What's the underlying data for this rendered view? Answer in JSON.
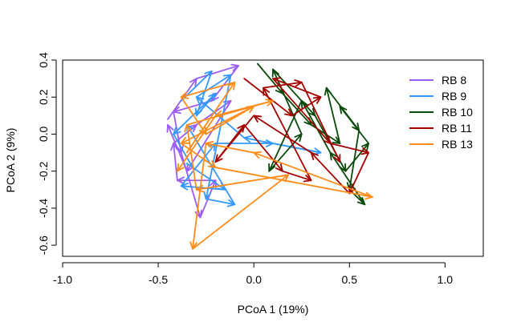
{
  "chart_data": {
    "type": "scatter",
    "subtype": "arrows",
    "title": "",
    "xlabel": "PCoA 1 (19%)",
    "ylabel": "PCoA 2 (9%)",
    "xlim": [
      -1.0,
      1.2
    ],
    "ylim": [
      -0.66,
      0.4
    ],
    "x_ticks": [
      -1.0,
      -0.5,
      0.0,
      0.5,
      1.0
    ],
    "x_tick_labels": [
      "-1.0",
      "-0.5",
      "0.0",
      "0.5",
      "1.0"
    ],
    "y_ticks": [
      -0.6,
      -0.4,
      -0.2,
      0.0,
      0.2,
      0.4
    ],
    "y_tick_labels": [
      "-0.6",
      "-0.4",
      "-0.2",
      "0.0",
      "0.2",
      "0.4"
    ],
    "grid": false,
    "legend_position": "top-right",
    "series": [
      {
        "name": "RB 8",
        "color": "#9B5DF5",
        "arrows": [
          [
            [
              -0.45,
              0.08
            ],
            [
              -0.3,
              0.3
            ]
          ],
          [
            [
              -0.3,
              0.3
            ],
            [
              -0.08,
              0.37
            ]
          ],
          [
            [
              -0.08,
              0.37
            ],
            [
              -0.22,
              0.18
            ]
          ],
          [
            [
              -0.22,
              0.18
            ],
            [
              -0.42,
              0.12
            ]
          ],
          [
            [
              -0.42,
              0.12
            ],
            [
              -0.38,
              -0.1
            ]
          ],
          [
            [
              -0.38,
              -0.1
            ],
            [
              -0.28,
              -0.45
            ]
          ],
          [
            [
              -0.28,
              -0.45
            ],
            [
              -0.2,
              -0.25
            ]
          ],
          [
            [
              -0.2,
              -0.25
            ],
            [
              -0.4,
              -0.25
            ]
          ],
          [
            [
              -0.4,
              -0.25
            ],
            [
              -0.42,
              -0.05
            ]
          ],
          [
            [
              -0.42,
              -0.05
            ],
            [
              -0.3,
              0.05
            ]
          ],
          [
            [
              -0.3,
              0.05
            ],
            [
              -0.12,
              0.18
            ]
          ],
          [
            [
              -0.12,
              0.18
            ],
            [
              -0.35,
              -0.2
            ]
          ],
          [
            [
              -0.35,
              -0.2
            ],
            [
              -0.45,
              0.05
            ]
          ]
        ]
      },
      {
        "name": "RB 9",
        "color": "#3399FF",
        "arrows": [
          [
            [
              -0.38,
              0.18
            ],
            [
              -0.22,
              0.34
            ]
          ],
          [
            [
              -0.22,
              0.34
            ],
            [
              -0.3,
              0.1
            ]
          ],
          [
            [
              -0.3,
              0.1
            ],
            [
              -0.2,
              0.22
            ]
          ],
          [
            [
              -0.2,
              0.22
            ],
            [
              -0.42,
              0.0
            ]
          ],
          [
            [
              -0.42,
              0.0
            ],
            [
              -0.32,
              -0.18
            ]
          ],
          [
            [
              -0.32,
              -0.18
            ],
            [
              -0.15,
              -0.3
            ]
          ],
          [
            [
              -0.15,
              -0.3
            ],
            [
              -0.38,
              -0.28
            ]
          ],
          [
            [
              -0.38,
              -0.28
            ],
            [
              -0.2,
              -0.05
            ]
          ],
          [
            [
              -0.2,
              -0.05
            ],
            [
              0.1,
              -0.05
            ]
          ],
          [
            [
              0.1,
              -0.05
            ],
            [
              0.35,
              -0.1
            ]
          ],
          [
            [
              0.35,
              -0.1
            ],
            [
              -0.05,
              -0.02
            ]
          ],
          [
            [
              -0.05,
              -0.02
            ],
            [
              -0.3,
              0.2
            ]
          ],
          [
            [
              -0.3,
              0.2
            ],
            [
              -0.12,
              0.32
            ]
          ],
          [
            [
              -0.12,
              0.32
            ],
            [
              -0.25,
              -0.35
            ]
          ],
          [
            [
              -0.25,
              -0.35
            ],
            [
              -0.1,
              -0.38
            ]
          ],
          [
            [
              -0.1,
              -0.38
            ],
            [
              -0.35,
              0.05
            ]
          ]
        ]
      },
      {
        "name": "RB 10",
        "color": "#0A4A0A",
        "arrows": [
          [
            [
              0.02,
              0.38
            ],
            [
              0.15,
              0.22
            ]
          ],
          [
            [
              0.15,
              0.22
            ],
            [
              0.3,
              0.05
            ]
          ],
          [
            [
              0.3,
              0.05
            ],
            [
              0.45,
              -0.05
            ]
          ],
          [
            [
              0.45,
              -0.05
            ],
            [
              0.38,
              0.25
            ]
          ],
          [
            [
              0.38,
              0.25
            ],
            [
              0.55,
              0.02
            ]
          ],
          [
            [
              0.55,
              0.02
            ],
            [
              0.5,
              -0.3
            ]
          ],
          [
            [
              0.5,
              -0.3
            ],
            [
              0.58,
              -0.38
            ]
          ],
          [
            [
              0.58,
              -0.38
            ],
            [
              0.4,
              -0.1
            ]
          ],
          [
            [
              0.4,
              -0.1
            ],
            [
              0.25,
              0.18
            ]
          ],
          [
            [
              0.25,
              0.18
            ],
            [
              0.08,
              -0.2
            ]
          ],
          [
            [
              0.08,
              -0.2
            ],
            [
              0.25,
              0.0
            ]
          ],
          [
            [
              0.25,
              0.0
            ],
            [
              0.1,
              0.35
            ]
          ],
          [
            [
              0.1,
              0.35
            ],
            [
              0.32,
              0.1
            ]
          ],
          [
            [
              0.32,
              0.1
            ],
            [
              0.48,
              -0.2
            ]
          ],
          [
            [
              0.48,
              -0.2
            ],
            [
              0.6,
              -0.05
            ]
          ],
          [
            [
              0.6,
              -0.05
            ],
            [
              0.45,
              0.15
            ]
          ]
        ]
      },
      {
        "name": "RB 11",
        "color": "#A30000",
        "arrows": [
          [
            [
              -0.05,
              0.3
            ],
            [
              0.2,
              0.1
            ]
          ],
          [
            [
              0.2,
              0.1
            ],
            [
              0.35,
              0.2
            ]
          ],
          [
            [
              0.35,
              0.2
            ],
            [
              0.1,
              0.3
            ]
          ],
          [
            [
              0.1,
              0.3
            ],
            [
              0.4,
              -0.05
            ]
          ],
          [
            [
              0.4,
              -0.05
            ],
            [
              0.6,
              -0.1
            ]
          ],
          [
            [
              0.6,
              -0.1
            ],
            [
              0.5,
              -0.32
            ]
          ],
          [
            [
              0.5,
              -0.32
            ],
            [
              0.3,
              -0.1
            ]
          ],
          [
            [
              0.3,
              -0.1
            ],
            [
              0.0,
              0.1
            ]
          ],
          [
            [
              0.0,
              0.1
            ],
            [
              -0.2,
              -0.15
            ]
          ],
          [
            [
              -0.2,
              -0.15
            ],
            [
              -0.05,
              0.05
            ]
          ],
          [
            [
              -0.05,
              0.05
            ],
            [
              0.15,
              -0.2
            ]
          ],
          [
            [
              0.15,
              -0.2
            ],
            [
              0.3,
              -0.25
            ]
          ],
          [
            [
              0.3,
              -0.25
            ],
            [
              0.05,
              0.25
            ]
          ],
          [
            [
              0.05,
              0.25
            ],
            [
              0.25,
              0.28
            ]
          ],
          [
            [
              0.25,
              0.28
            ],
            [
              0.45,
              -0.15
            ]
          ]
        ]
      },
      {
        "name": "RB 13",
        "color": "#FF8C1A",
        "arrows": [
          [
            [
              -0.35,
              -0.1
            ],
            [
              -0.1,
              0.28
            ]
          ],
          [
            [
              -0.1,
              0.28
            ],
            [
              -0.38,
              0.2
            ]
          ],
          [
            [
              -0.38,
              0.2
            ],
            [
              -0.25,
              0.0
            ]
          ],
          [
            [
              -0.25,
              0.0
            ],
            [
              0.0,
              0.15
            ]
          ],
          [
            [
              0.0,
              0.15
            ],
            [
              -0.38,
              -0.05
            ]
          ],
          [
            [
              -0.38,
              -0.05
            ],
            [
              -0.2,
              -0.18
            ]
          ],
          [
            [
              -0.2,
              -0.18
            ],
            [
              0.62,
              -0.34
            ]
          ],
          [
            [
              0.62,
              -0.34
            ],
            [
              0.0,
              -0.1
            ]
          ],
          [
            [
              0.0,
              -0.1
            ],
            [
              -0.25,
              -0.05
            ]
          ],
          [
            [
              -0.25,
              -0.05
            ],
            [
              -0.32,
              -0.62
            ]
          ],
          [
            [
              -0.32,
              -0.62
            ],
            [
              0.18,
              -0.22
            ]
          ],
          [
            [
              0.18,
              -0.22
            ],
            [
              -0.3,
              -0.3
            ]
          ],
          [
            [
              -0.3,
              -0.3
            ],
            [
              -0.35,
              0.05
            ]
          ],
          [
            [
              -0.35,
              0.05
            ],
            [
              0.1,
              0.18
            ]
          ],
          [
            [
              0.1,
              0.18
            ],
            [
              -0.2,
              0.1
            ]
          ],
          [
            [
              -0.2,
              0.1
            ],
            [
              -0.4,
              -0.2
            ]
          ]
        ]
      }
    ]
  }
}
